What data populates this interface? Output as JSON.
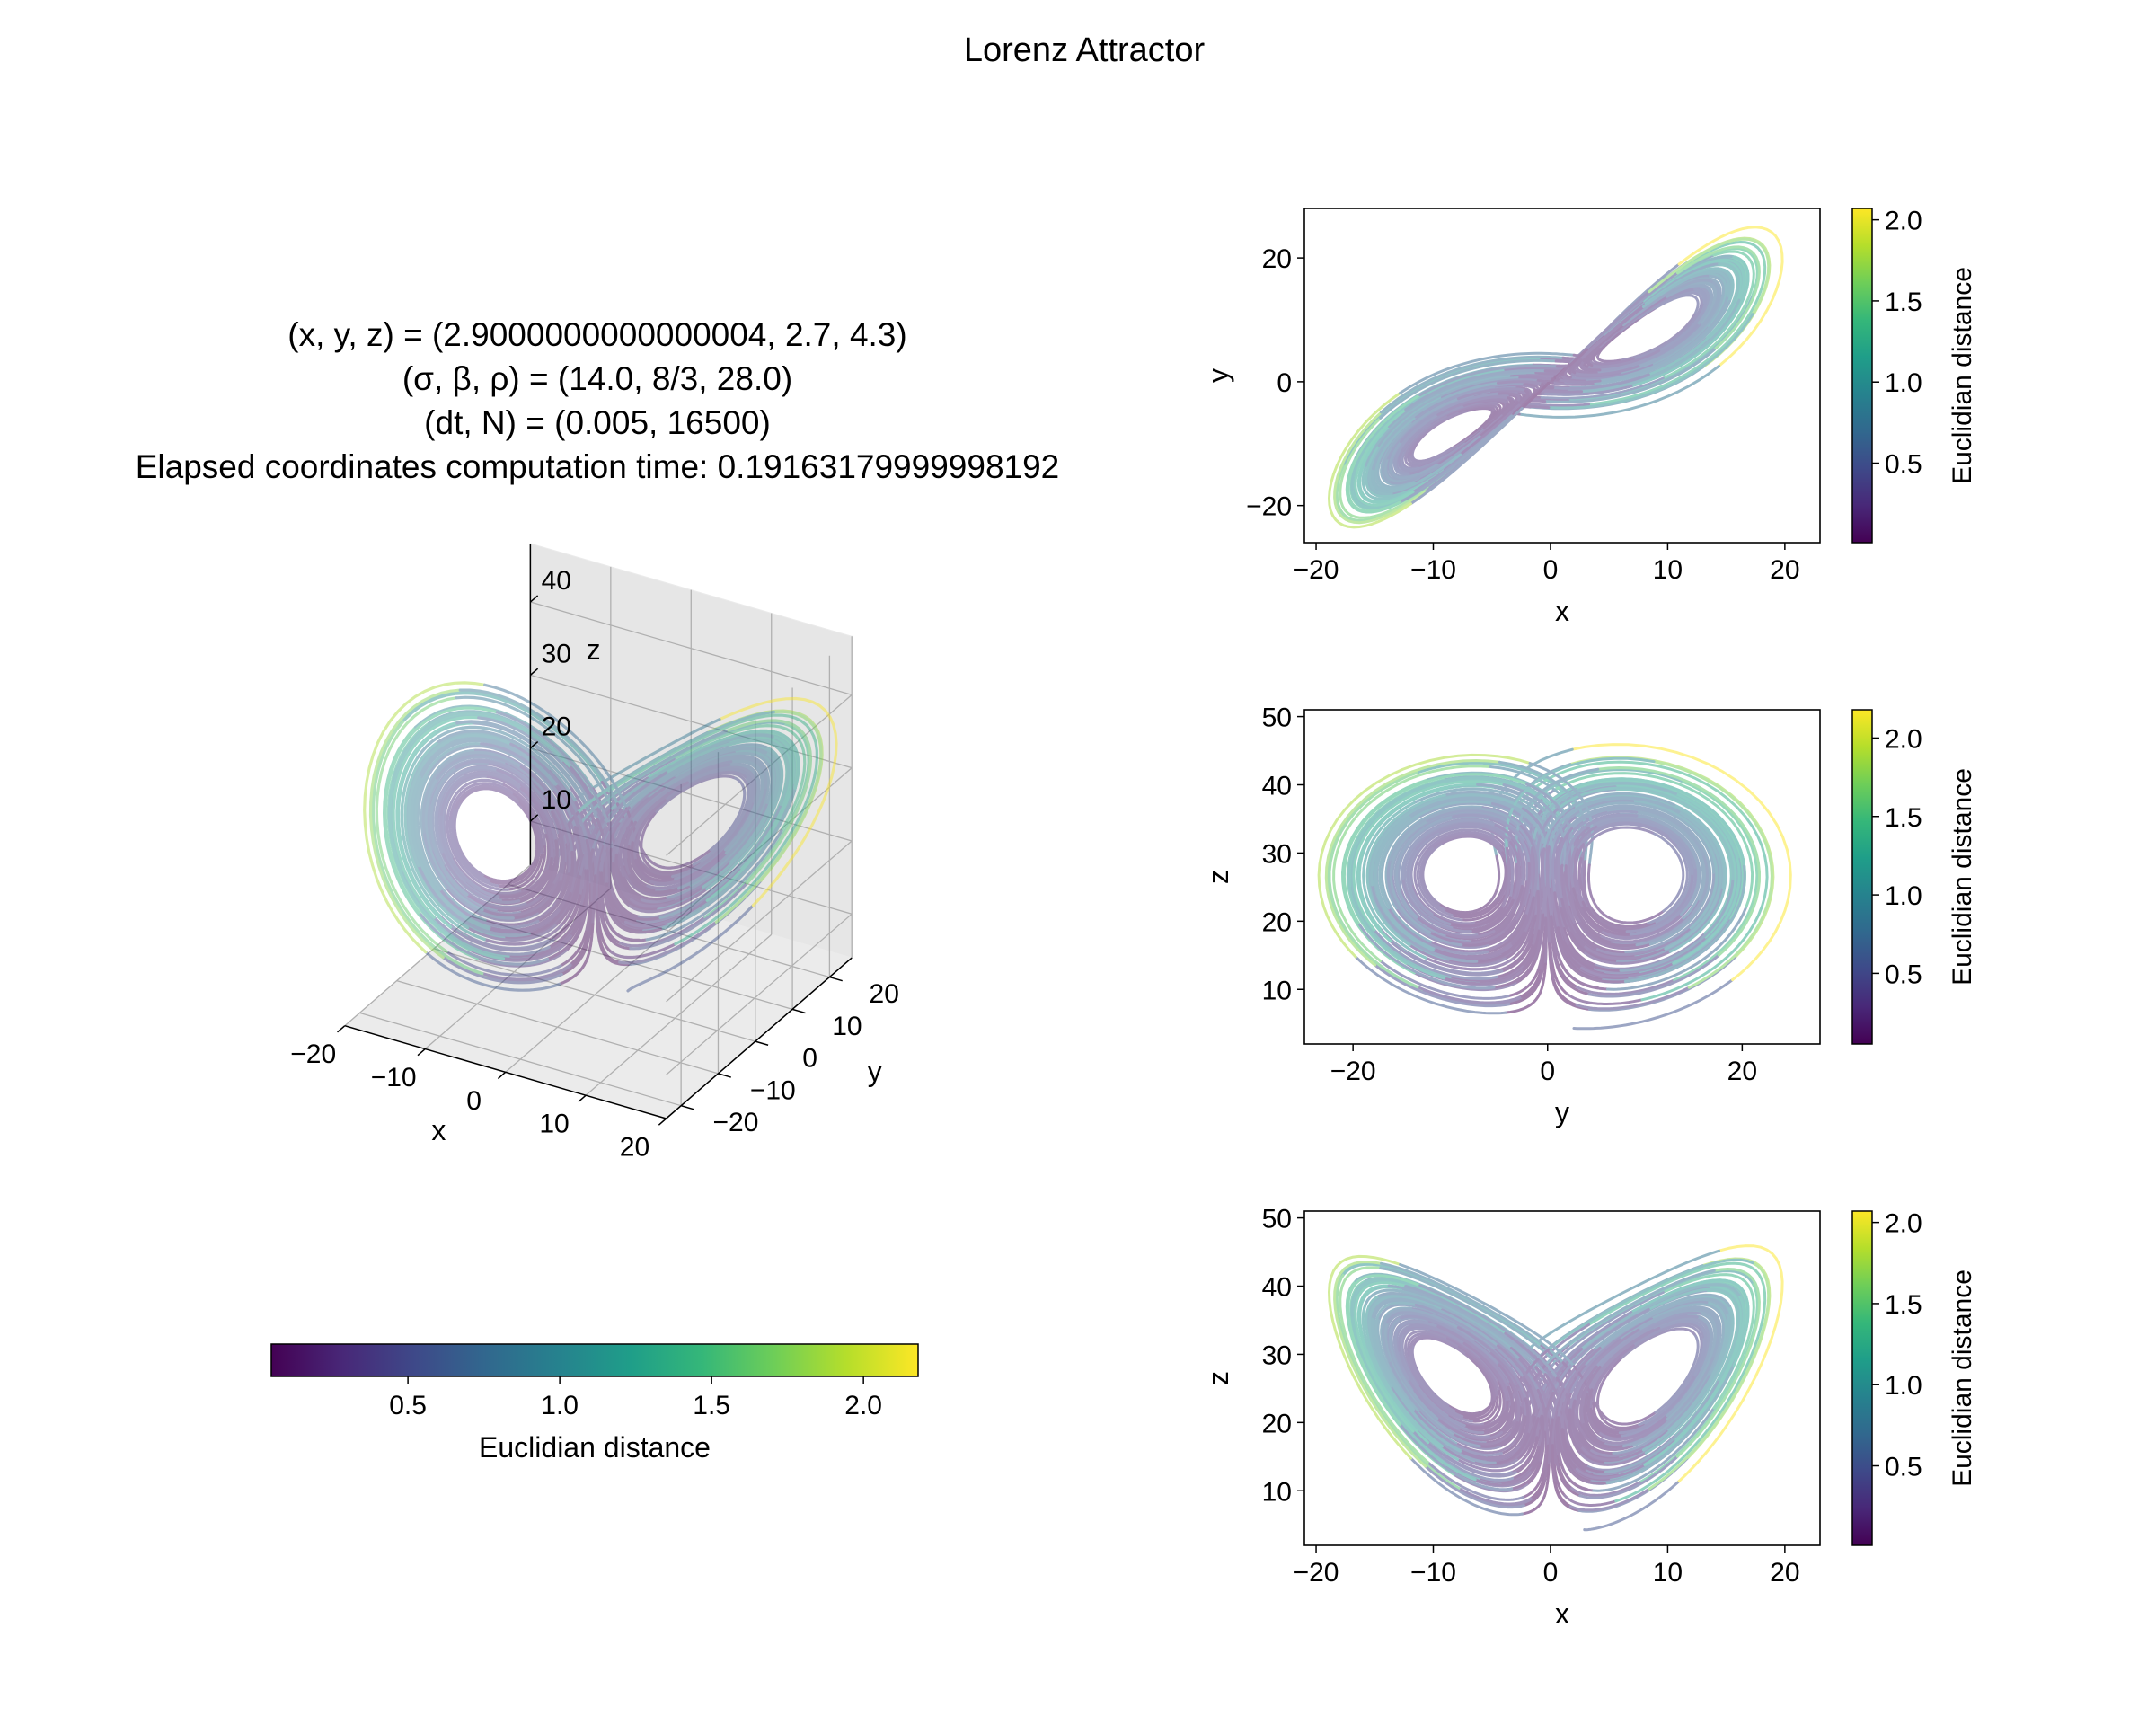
{
  "figure": {
    "suptitle": "Lorenz Attractor"
  },
  "info": {
    "lines": [
      "(x, y, z) = (2.9000000000000004, 2.7, 4.3)",
      "(σ, β, ρ) = (14.0, 8/3, 28.0)",
      "(dt, N) = (0.005, 16500)",
      "Elapsed coordinates computation time: 0.19163179999998192"
    ]
  },
  "simulation": {
    "x0": 2.9000000000000004,
    "y0": 2.7,
    "z0": 4.3,
    "sigma": 14.0,
    "beta": 2.6666666666666665,
    "rho": 28.0,
    "dt": 0.005,
    "N": 16500
  },
  "colormap": {
    "name": "viridis",
    "stops": [
      "#440154",
      "#482878",
      "#3e4989",
      "#31688e",
      "#26828e",
      "#1f9e89",
      "#35b779",
      "#6ece58",
      "#b5de2b",
      "#fde725"
    ]
  },
  "chart_data": [
    {
      "type": "line",
      "projection": "3d",
      "series": [
        {
          "x_var": "x",
          "y_var": "y",
          "z_var": "z"
        }
      ],
      "xlabel": "x",
      "ylabel": "y",
      "zlabel": "z",
      "xticks": [
        -20,
        -10,
        0,
        10,
        20
      ],
      "yticks": [
        -20,
        -10,
        0,
        10,
        20
      ],
      "zticks": [
        10,
        20,
        30,
        40
      ],
      "xlim": [
        -20,
        20
      ],
      "ylim": [
        -24,
        26
      ],
      "zlim": [
        4,
        48
      ],
      "grid": true
    },
    {
      "type": "scatter",
      "series": [
        {
          "x_var": "x",
          "y_var": "y"
        }
      ],
      "xlabel": "x",
      "ylabel": "y",
      "xlim": [
        -21,
        23
      ],
      "ylim": [
        -26,
        28
      ],
      "xticks": [
        -20,
        -10,
        0,
        10,
        20
      ],
      "yticks": [
        -20,
        0,
        20
      ],
      "colorbar": {
        "label": "Euclidian distance",
        "range": [
          0.01,
          2.07
        ],
        "ticks": [
          0.5,
          1.0,
          1.5,
          2.0
        ]
      }
    },
    {
      "type": "scatter",
      "series": [
        {
          "x_var": "y",
          "y_var": "z"
        }
      ],
      "xlabel": "y",
      "ylabel": "z",
      "xlim": [
        -25,
        28
      ],
      "ylim": [
        2,
        51
      ],
      "xticks": [
        -20,
        0,
        20
      ],
      "yticks": [
        10,
        20,
        30,
        40,
        50
      ],
      "colorbar": {
        "label": "Euclidian distance",
        "range": [
          0.05,
          2.18
        ],
        "ticks": [
          0.5,
          1.0,
          1.5,
          2.0
        ]
      }
    },
    {
      "type": "scatter",
      "series": [
        {
          "x_var": "x",
          "y_var": "z"
        }
      ],
      "xlabel": "x",
      "ylabel": "z",
      "xlim": [
        -21,
        23
      ],
      "ylim": [
        2,
        51
      ],
      "xticks": [
        -20,
        -10,
        0,
        10,
        20
      ],
      "yticks": [
        10,
        20,
        30,
        40,
        50
      ],
      "colorbar": {
        "label": "Euclidian distance",
        "range": [
          0.01,
          2.07
        ],
        "ticks": [
          0.5,
          1.0,
          1.5,
          2.0
        ]
      }
    },
    {
      "type": "colorbar",
      "orientation": "horizontal",
      "label": "Euclidian distance",
      "range": [
        0.05,
        2.18
      ],
      "ticks": [
        0.5,
        1.0,
        1.5,
        2.0
      ]
    }
  ]
}
